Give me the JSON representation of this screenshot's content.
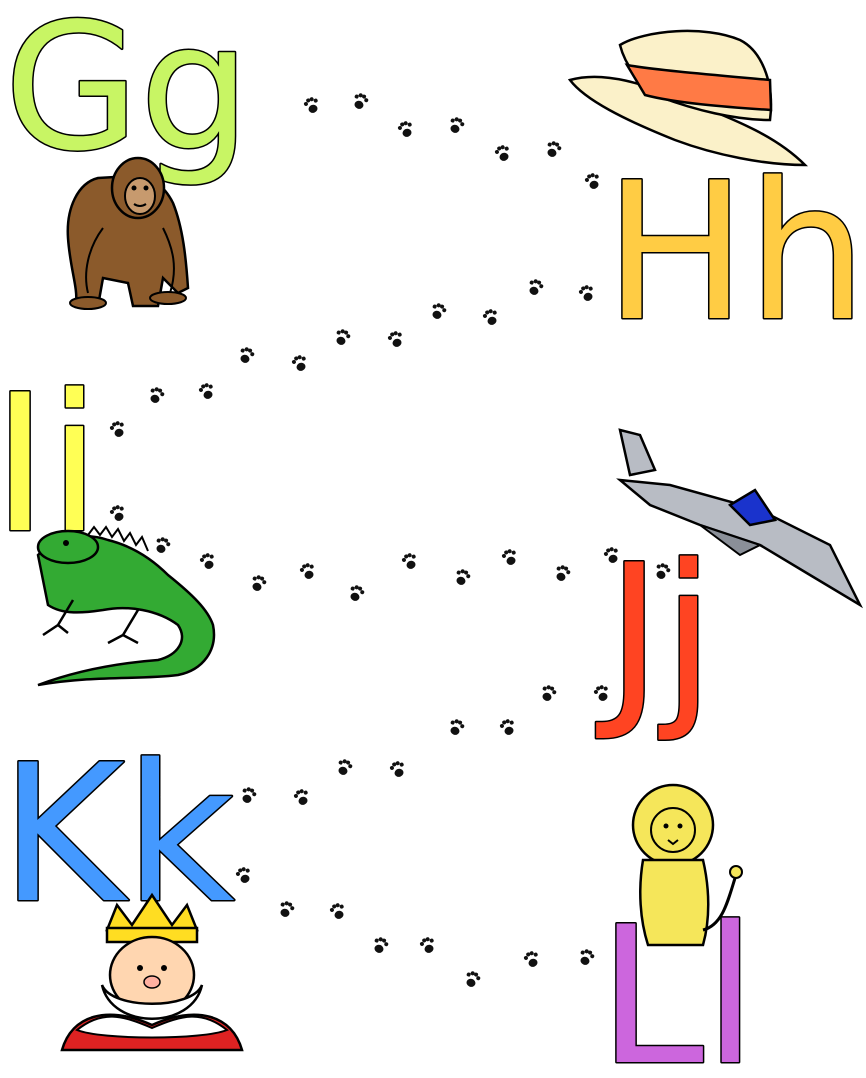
{
  "letters": [
    {
      "id": "g",
      "text": "Gg",
      "color": "#c8f564"
    },
    {
      "id": "h",
      "text": "Hh",
      "color": "#ffcc44"
    },
    {
      "id": "i",
      "text": "Ii",
      "color": "#ffff55"
    },
    {
      "id": "j",
      "text": "Jj",
      "color": "#ff4422"
    },
    {
      "id": "k",
      "text": "Kk",
      "color": "#4499ff"
    },
    {
      "id": "l",
      "text": "Ll",
      "color": "#cc66dd"
    }
  ],
  "pictures": [
    {
      "name": "gorilla",
      "icon": "gorilla-icon"
    },
    {
      "name": "hat",
      "icon": "hat-icon"
    },
    {
      "name": "iguana",
      "icon": "iguana-icon"
    },
    {
      "name": "jet",
      "icon": "jet-icon"
    },
    {
      "name": "king",
      "icon": "king-icon"
    },
    {
      "name": "lion",
      "icon": "lion-icon"
    }
  ],
  "colors": {
    "background": "#ffffff",
    "paw": "#111111",
    "gorilla": "#8b5a2b",
    "hat": "#fbf1c9",
    "hat_band": "#ff7a45",
    "iguana": "#33aa33",
    "jet": "#b8bcc4",
    "jet_canopy": "#1a33cc",
    "crown": "#ffdd22",
    "robe": "#dd2222",
    "lion": "#f5e65a"
  }
}
